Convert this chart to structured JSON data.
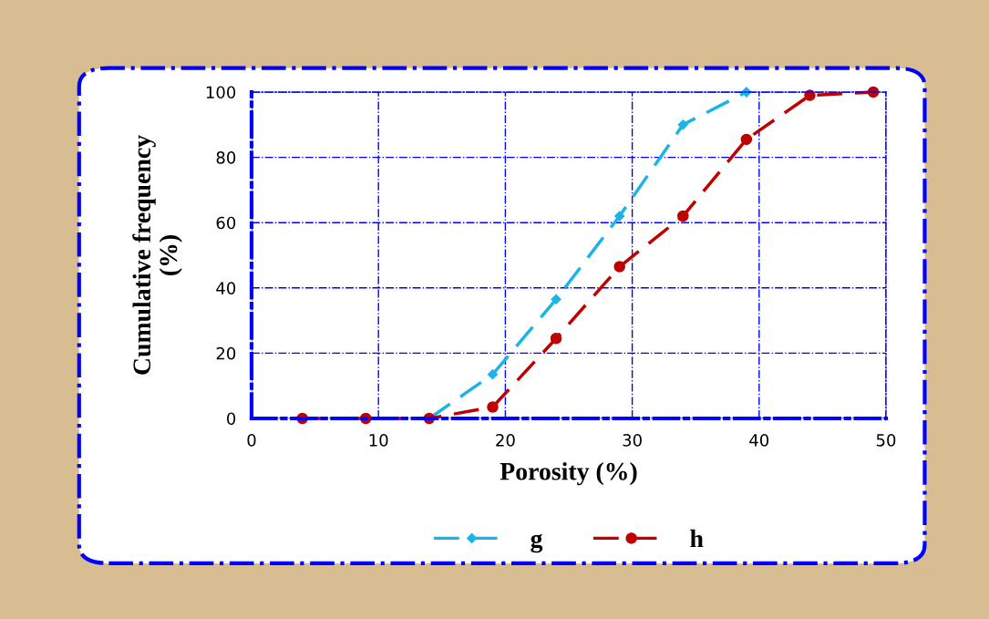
{
  "chart_data": {
    "type": "line",
    "xlabel": "Porosity (%)",
    "ylabel": "Cumulative frequency\n(%)",
    "xlim": [
      0,
      50
    ],
    "xticks": [
      0,
      10,
      20,
      30,
      40,
      50
    ],
    "ylim": [
      0,
      100
    ],
    "yticks": [
      0,
      20,
      40,
      60,
      80,
      100
    ],
    "grid": true,
    "legend": "bottom",
    "line_style": "dashed",
    "series": [
      {
        "name": "g",
        "color": "#1cb4e8",
        "marker": "diamond",
        "x": [
          14,
          19,
          24,
          29,
          34,
          39
        ],
        "values": [
          0,
          13.5,
          36.5,
          62,
          90,
          100
        ]
      },
      {
        "name": "h",
        "color": "#c00000",
        "marker": "circle",
        "x": [
          4,
          9,
          14,
          19,
          24,
          29,
          34,
          39,
          44,
          49
        ],
        "values": [
          0,
          0,
          0,
          3.5,
          24.5,
          46.5,
          62,
          85.5,
          99,
          100
        ]
      }
    ]
  }
}
